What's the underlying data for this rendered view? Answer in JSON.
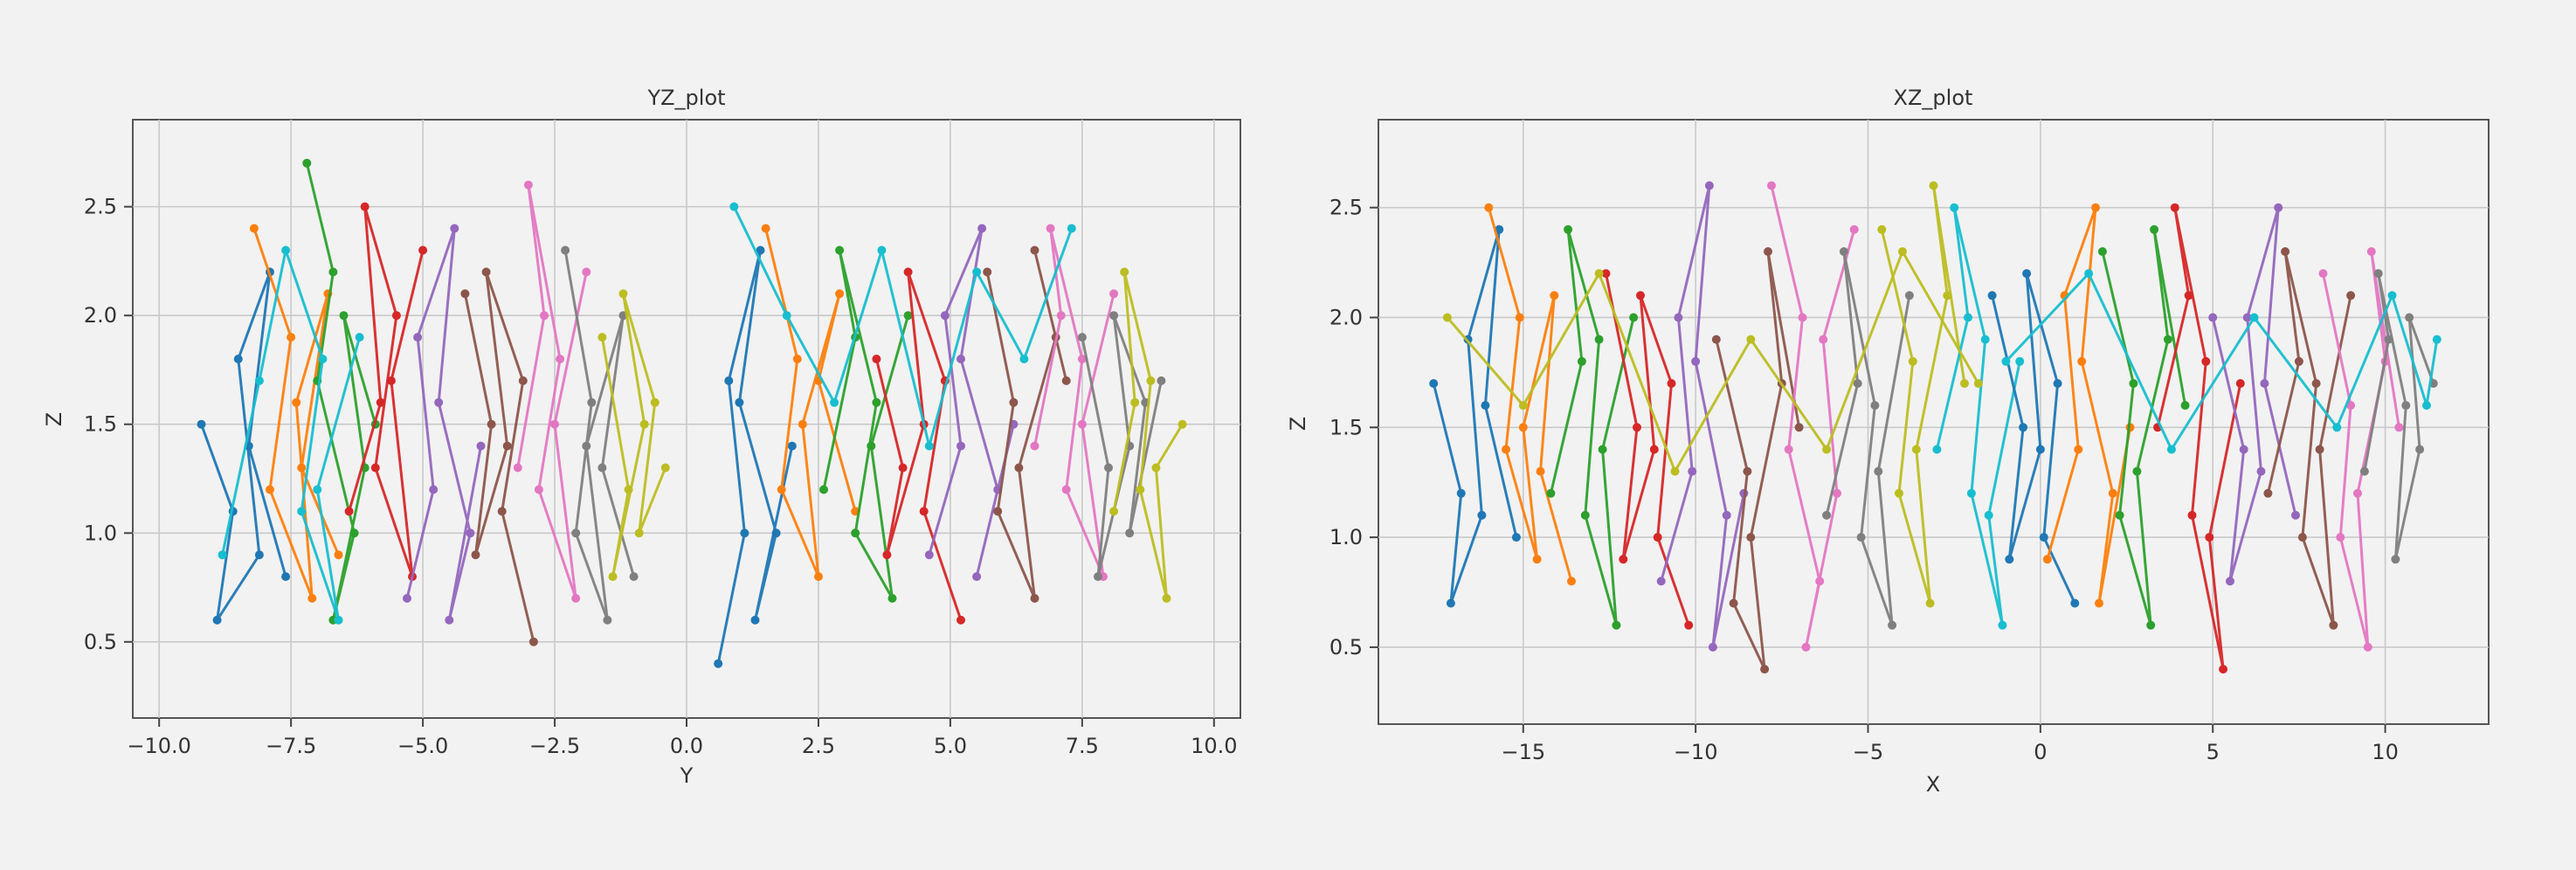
{
  "palette": [
    "#1f77b4",
    "#ff7f0e",
    "#2ca02c",
    "#d62728",
    "#9467bd",
    "#8c564b",
    "#e377c2",
    "#7f7f7f",
    "#bcbd22",
    "#17becf"
  ],
  "chart_data": [
    {
      "id": "yz",
      "type": "line",
      "title": "YZ_plot",
      "xlabel": "Y",
      "ylabel": "Z",
      "xlim": [
        -10.5,
        10.5
      ],
      "ylim": [
        0.15,
        2.9
      ],
      "xticks": [
        -10.0,
        -7.5,
        -5.0,
        -2.5,
        0.0,
        2.5,
        5.0,
        7.5,
        10.0
      ],
      "xtick_labels": [
        "−10.0",
        "−7.5",
        "−5.0",
        "−2.5",
        "0.0",
        "2.5",
        "5.0",
        "7.5",
        "10.0"
      ],
      "yticks": [
        0.5,
        1.0,
        1.5,
        2.0,
        2.5
      ],
      "ytick_labels": [
        "0.5",
        "1.0",
        "1.5",
        "2.0",
        "2.5"
      ],
      "grid": true,
      "markers": true,
      "series": [
        {
          "x": [
            -9.2,
            -8.6,
            -8.9,
            -8.1,
            -8.5,
            -7.9,
            -8.3,
            -7.6
          ],
          "y": [
            1.5,
            1.1,
            0.6,
            0.9,
            1.8,
            2.2,
            1.4,
            0.8
          ]
        },
        {
          "x": [
            -8.2,
            -7.5,
            -7.9,
            -7.1,
            -7.4,
            -6.8,
            -7.3,
            -6.6
          ],
          "y": [
            2.4,
            1.9,
            1.2,
            0.7,
            1.6,
            2.1,
            1.3,
            0.9
          ]
        },
        {
          "x": [
            -7.2,
            -6.7,
            -7.0,
            -6.3,
            -6.7,
            -6.1,
            -6.5,
            -5.9
          ],
          "y": [
            2.7,
            2.2,
            1.7,
            1.0,
            0.6,
            1.3,
            2.0,
            1.5
          ]
        },
        {
          "x": [
            -6.4,
            -5.8,
            -6.1,
            -5.5,
            -5.9,
            -5.2,
            -5.6,
            -5.0
          ],
          "y": [
            1.1,
            1.6,
            2.5,
            2.0,
            1.3,
            0.8,
            1.7,
            2.3
          ]
        },
        {
          "x": [
            -5.3,
            -4.8,
            -5.1,
            -4.4,
            -4.7,
            -4.1,
            -4.5,
            -3.9
          ],
          "y": [
            0.7,
            1.2,
            1.9,
            2.4,
            1.6,
            1.0,
            0.6,
            1.4
          ]
        },
        {
          "x": [
            -4.2,
            -3.7,
            -4.0,
            -3.4,
            -3.8,
            -3.1,
            -3.5,
            -2.9
          ],
          "y": [
            2.1,
            1.5,
            0.9,
            1.4,
            2.2,
            1.7,
            1.1,
            0.5
          ]
        },
        {
          "x": [
            -3.2,
            -2.7,
            -3.0,
            -2.4,
            -2.8,
            -2.1,
            -2.5,
            -1.9
          ],
          "y": [
            1.3,
            2.0,
            2.6,
            1.8,
            1.2,
            0.7,
            1.5,
            2.2
          ]
        },
        {
          "x": [
            -2.3,
            -1.8,
            -2.1,
            -1.5,
            -1.9,
            -1.2,
            -1.6,
            -1.0
          ],
          "y": [
            2.3,
            1.6,
            1.0,
            0.6,
            1.4,
            2.0,
            1.3,
            0.8
          ]
        },
        {
          "x": [
            -1.6,
            -1.1,
            -1.4,
            -0.8,
            -1.2,
            -0.6,
            -0.9,
            -0.4
          ],
          "y": [
            1.9,
            1.2,
            0.8,
            1.5,
            2.1,
            1.6,
            1.0,
            1.3
          ]
        },
        {
          "x": [
            -8.8,
            -8.1,
            -7.6,
            -6.9,
            -7.3,
            -6.6,
            -7.0,
            -6.2
          ],
          "y": [
            0.9,
            1.7,
            2.3,
            1.8,
            1.1,
            0.6,
            1.2,
            1.9
          ]
        },
        {
          "x": [
            0.6,
            1.1,
            0.8,
            1.4,
            1.0,
            1.7,
            1.3,
            2.0
          ],
          "y": [
            0.4,
            1.0,
            1.7,
            2.3,
            1.6,
            1.0,
            0.6,
            1.4
          ]
        },
        {
          "x": [
            1.5,
            2.1,
            1.8,
            2.5,
            2.2,
            2.9,
            2.5,
            3.2
          ],
          "y": [
            2.4,
            1.8,
            1.2,
            0.8,
            1.5,
            2.1,
            1.7,
            1.1
          ]
        },
        {
          "x": [
            2.6,
            3.2,
            2.9,
            3.6,
            3.2,
            3.9,
            3.5,
            4.2
          ],
          "y": [
            1.2,
            1.9,
            2.3,
            1.6,
            1.0,
            0.7,
            1.4,
            2.0
          ]
        },
        {
          "x": [
            3.6,
            4.1,
            3.8,
            4.5,
            4.2,
            4.9,
            4.5,
            5.2
          ],
          "y": [
            1.8,
            1.3,
            0.9,
            1.5,
            2.2,
            1.7,
            1.1,
            0.6
          ]
        },
        {
          "x": [
            4.6,
            5.2,
            4.9,
            5.6,
            5.2,
            5.9,
            5.5,
            6.2
          ],
          "y": [
            0.9,
            1.4,
            2.0,
            2.4,
            1.8,
            1.2,
            0.8,
            1.5
          ]
        },
        {
          "x": [
            5.7,
            6.2,
            5.9,
            6.6,
            6.3,
            7.0,
            6.6,
            7.2
          ],
          "y": [
            2.2,
            1.6,
            1.1,
            0.7,
            1.3,
            1.9,
            2.3,
            1.7
          ]
        },
        {
          "x": [
            6.6,
            7.1,
            6.9,
            7.5,
            7.2,
            7.9,
            7.5,
            8.1
          ],
          "y": [
            1.4,
            2.0,
            2.4,
            1.8,
            1.2,
            0.8,
            1.5,
            2.1
          ]
        },
        {
          "x": [
            7.5,
            8.0,
            7.8,
            8.4,
            8.1,
            8.7,
            8.4,
            9.0
          ],
          "y": [
            1.9,
            1.3,
            0.8,
            1.4,
            2.0,
            1.6,
            1.0,
            1.7
          ]
        },
        {
          "x": [
            8.1,
            8.5,
            8.3,
            8.8,
            8.6,
            9.1,
            8.9,
            9.4
          ],
          "y": [
            1.1,
            1.6,
            2.2,
            1.7,
            1.2,
            0.7,
            1.3,
            1.5
          ]
        },
        {
          "x": [
            0.9,
            1.9,
            2.8,
            3.7,
            4.6,
            5.5,
            6.4,
            7.3
          ],
          "y": [
            2.5,
            2.0,
            1.6,
            2.3,
            1.4,
            2.2,
            1.8,
            2.4
          ]
        }
      ]
    },
    {
      "id": "xz",
      "type": "line",
      "title": "XZ_plot",
      "xlabel": "X",
      "ylabel": "Z",
      "xlim": [
        -19.2,
        13.0
      ],
      "ylim": [
        0.15,
        2.9
      ],
      "xticks": [
        -15,
        -10,
        -5,
        0,
        5,
        10
      ],
      "xtick_labels": [
        "−15",
        "−10",
        "−5",
        "0",
        "5",
        "10"
      ],
      "yticks": [
        0.5,
        1.0,
        1.5,
        2.0,
        2.5
      ],
      "ytick_labels": [
        "0.5",
        "1.0",
        "1.5",
        "2.0",
        "2.5"
      ],
      "grid": true,
      "markers": true,
      "series": [
        {
          "x": [
            -17.6,
            -16.8,
            -17.1,
            -16.2,
            -16.6,
            -15.7,
            -16.1,
            -15.2
          ],
          "y": [
            1.7,
            1.2,
            0.7,
            1.1,
            1.9,
            2.4,
            1.6,
            1.0
          ]
        },
        {
          "x": [
            -16.0,
            -15.1,
            -15.5,
            -14.6,
            -15.0,
            -14.1,
            -14.5,
            -13.6
          ],
          "y": [
            2.5,
            2.0,
            1.4,
            0.9,
            1.5,
            2.1,
            1.3,
            0.8
          ]
        },
        {
          "x": [
            -14.2,
            -13.3,
            -13.7,
            -12.8,
            -13.2,
            -12.3,
            -12.7,
            -11.8
          ],
          "y": [
            1.2,
            1.8,
            2.4,
            1.9,
            1.1,
            0.6,
            1.4,
            2.0
          ]
        },
        {
          "x": [
            -12.6,
            -11.7,
            -12.1,
            -11.2,
            -11.6,
            -10.7,
            -11.1,
            -10.2
          ],
          "y": [
            2.2,
            1.5,
            0.9,
            1.4,
            2.1,
            1.7,
            1.0,
            0.6
          ]
        },
        {
          "x": [
            -11.0,
            -10.1,
            -10.5,
            -9.6,
            -10.0,
            -9.1,
            -9.5,
            -8.6
          ],
          "y": [
            0.8,
            1.3,
            2.0,
            2.6,
            1.8,
            1.1,
            0.5,
            1.2
          ]
        },
        {
          "x": [
            -9.4,
            -8.5,
            -8.9,
            -8.0,
            -8.4,
            -7.5,
            -7.9,
            -7.0
          ],
          "y": [
            1.9,
            1.3,
            0.7,
            0.4,
            1.0,
            1.7,
            2.3,
            1.5
          ]
        },
        {
          "x": [
            -7.8,
            -6.9,
            -7.3,
            -6.4,
            -6.8,
            -5.9,
            -6.3,
            -5.4
          ],
          "y": [
            2.6,
            2.0,
            1.4,
            0.8,
            0.5,
            1.2,
            1.9,
            2.4
          ]
        },
        {
          "x": [
            -6.2,
            -5.3,
            -5.7,
            -4.8,
            -5.2,
            -4.3,
            -4.7,
            -3.8
          ],
          "y": [
            1.1,
            1.7,
            2.3,
            1.6,
            1.0,
            0.6,
            1.3,
            2.1
          ]
        },
        {
          "x": [
            -4.6,
            -3.7,
            -4.1,
            -3.2,
            -3.6,
            -2.7,
            -3.1,
            -2.2
          ],
          "y": [
            2.4,
            1.8,
            1.2,
            0.7,
            1.4,
            2.1,
            2.6,
            1.7
          ]
        },
        {
          "x": [
            -3.0,
            -2.1,
            -2.5,
            -1.6,
            -2.0,
            -1.1,
            -1.5,
            -0.6
          ],
          "y": [
            1.4,
            2.0,
            2.5,
            1.9,
            1.2,
            0.6,
            1.1,
            1.8
          ]
        },
        {
          "x": [
            -1.4,
            -0.5,
            -0.9,
            0.0,
            -0.4,
            0.5,
            0.1,
            1.0
          ],
          "y": [
            2.1,
            1.5,
            0.9,
            1.4,
            2.2,
            1.7,
            1.0,
            0.7
          ]
        },
        {
          "x": [
            0.2,
            1.1,
            0.7,
            1.6,
            1.2,
            2.1,
            1.7,
            2.6
          ],
          "y": [
            0.9,
            1.4,
            2.1,
            2.5,
            1.8,
            1.2,
            0.7,
            1.5
          ]
        },
        {
          "x": [
            1.8,
            2.7,
            2.3,
            3.2,
            2.8,
            3.7,
            3.3,
            4.2
          ],
          "y": [
            2.3,
            1.7,
            1.1,
            0.6,
            1.3,
            1.9,
            2.4,
            1.6
          ]
        },
        {
          "x": [
            3.4,
            4.3,
            3.9,
            4.8,
            4.4,
            5.3,
            4.9,
            5.8
          ],
          "y": [
            1.5,
            2.1,
            2.5,
            1.8,
            1.1,
            0.4,
            1.0,
            1.7
          ]
        },
        {
          "x": [
            5.0,
            5.9,
            5.5,
            6.4,
            6.0,
            6.9,
            6.5,
            7.4
          ],
          "y": [
            2.0,
            1.4,
            0.8,
            1.3,
            2.0,
            2.5,
            1.7,
            1.1
          ]
        },
        {
          "x": [
            6.6,
            7.5,
            7.1,
            8.0,
            7.6,
            8.5,
            8.1,
            9.0
          ],
          "y": [
            1.2,
            1.8,
            2.3,
            1.7,
            1.0,
            0.6,
            1.4,
            2.1
          ]
        },
        {
          "x": [
            8.2,
            9.0,
            8.7,
            9.5,
            9.2,
            10.0,
            9.6,
            10.4
          ],
          "y": [
            2.2,
            1.6,
            1.0,
            0.5,
            1.2,
            1.8,
            2.3,
            1.5
          ]
        },
        {
          "x": [
            9.4,
            10.1,
            9.8,
            10.6,
            10.3,
            11.0,
            10.7,
            11.4
          ],
          "y": [
            1.3,
            1.9,
            2.2,
            1.6,
            0.9,
            1.4,
            2.0,
            1.7
          ]
        },
        {
          "x": [
            -17.2,
            -15.0,
            -12.8,
            -10.6,
            -8.4,
            -6.2,
            -4.0,
            -1.8
          ],
          "y": [
            2.0,
            1.6,
            2.2,
            1.3,
            1.9,
            1.4,
            2.3,
            1.7
          ]
        },
        {
          "x": [
            -1.0,
            1.4,
            3.8,
            6.2,
            8.6,
            10.2,
            11.2,
            11.5
          ],
          "y": [
            1.8,
            2.2,
            1.4,
            2.0,
            1.5,
            2.1,
            1.6,
            1.9
          ]
        }
      ]
    }
  ]
}
